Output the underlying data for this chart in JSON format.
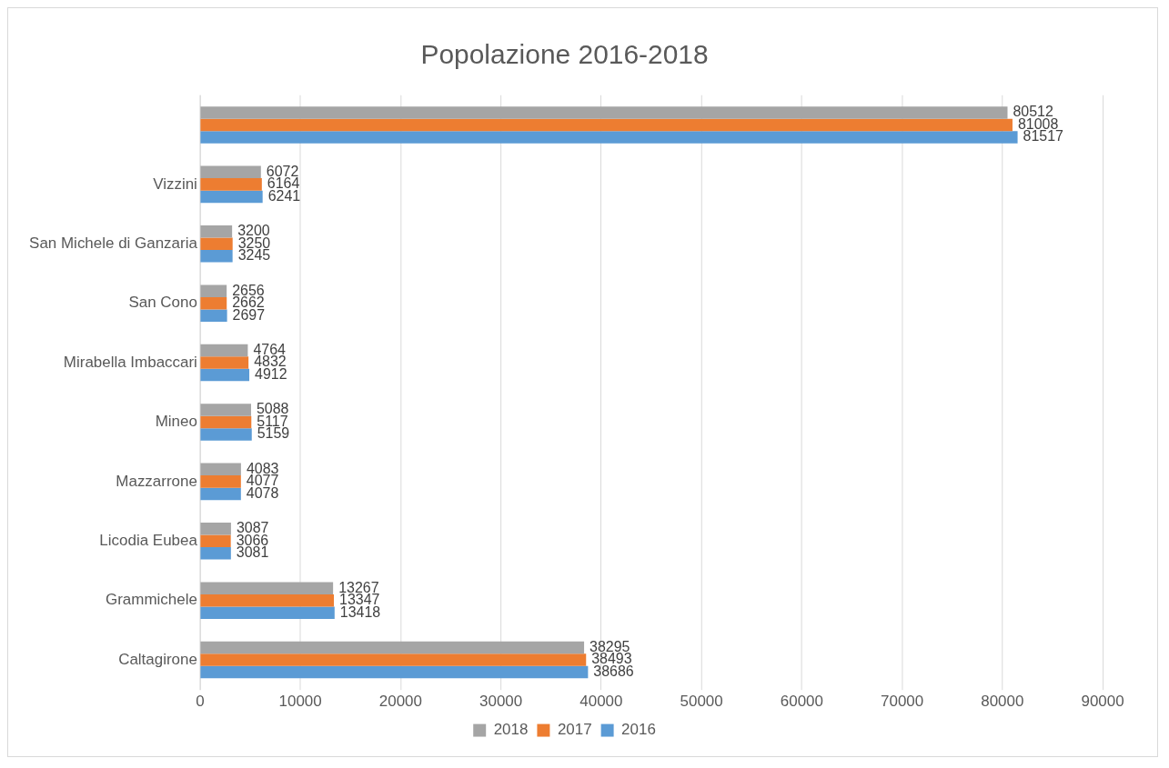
{
  "chart_data": {
    "type": "bar",
    "orientation": "horizontal",
    "title": "Popolazione 2016-2018",
    "categories": [
      null,
      "Vizzini",
      "San Michele di Ganzaria",
      "San Cono",
      "Mirabella Imbaccari",
      "Mineo",
      "Mazzarrone",
      "Licodia Eubea",
      "Grammichele",
      "Caltagirone"
    ],
    "series": [
      {
        "name": "2018",
        "color": "#a5a5a5",
        "values": [
          80512,
          6072,
          3200,
          2656,
          4764,
          5088,
          4083,
          3087,
          13267,
          38295
        ]
      },
      {
        "name": "2017",
        "color": "#ed7d31",
        "values": [
          81008,
          6164,
          3250,
          2662,
          4832,
          5117,
          4077,
          3066,
          13347,
          38493
        ]
      },
      {
        "name": "2016",
        "color": "#5b9bd5",
        "values": [
          81517,
          6241,
          3245,
          2697,
          4912,
          5159,
          4078,
          3081,
          13418,
          38686
        ]
      }
    ],
    "xlim": [
      0,
      90000
    ],
    "xticks": [
      0,
      10000,
      20000,
      30000,
      40000,
      50000,
      60000,
      70000,
      80000,
      90000
    ],
    "grid": "x",
    "legend": "bottom",
    "data_labels": true
  }
}
